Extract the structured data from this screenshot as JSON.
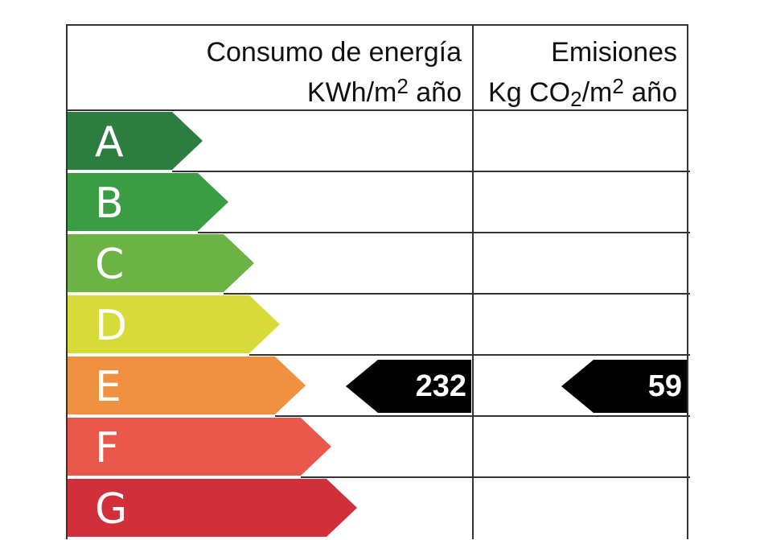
{
  "header": {
    "energy_line1": "Consumo de energía",
    "energy_line2_prefix": "KWh/m",
    "energy_line2_sup": "2",
    "energy_line2_suffix": " año",
    "emissions_line1": "Emisiones",
    "emissions_line2_prefix": "Kg CO",
    "emissions_line2_sub": "2",
    "emissions_line2_mid": "/m",
    "emissions_line2_sup": "2",
    "emissions_line2_suffix": " año"
  },
  "ratings": [
    {
      "letter": "A",
      "color": "#2e7d40"
    },
    {
      "letter": "B",
      "color": "#3a9c43"
    },
    {
      "letter": "C",
      "color": "#6ab344"
    },
    {
      "letter": "D",
      "color": "#d6db3a"
    },
    {
      "letter": "E",
      "color": "#f09141"
    },
    {
      "letter": "F",
      "color": "#e9584a"
    },
    {
      "letter": "G",
      "color": "#d1303a"
    }
  ],
  "energy_value": "232",
  "emissions_value": "59",
  "current_rating": "E"
}
